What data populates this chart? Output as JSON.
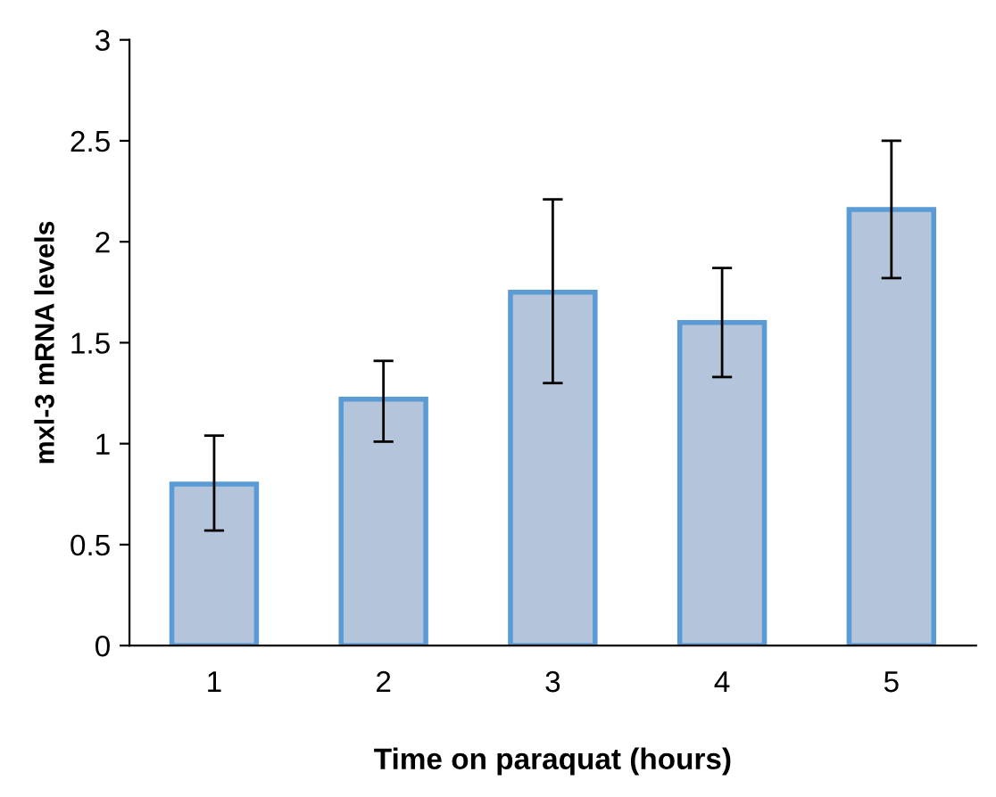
{
  "chart_data": {
    "type": "bar",
    "xlabel": "Time on paraquat (hours)",
    "ylabel": "mxl-3 mRNA levels",
    "categories": [
      "1",
      "2",
      "3",
      "4",
      "5"
    ],
    "values": [
      0.8,
      1.22,
      1.75,
      1.6,
      2.16
    ],
    "errors": [
      [
        0.57,
        1.04
      ],
      [
        1.01,
        1.41
      ],
      [
        1.3,
        2.21
      ],
      [
        1.33,
        1.87
      ],
      [
        1.82,
        2.5
      ]
    ],
    "color": "#b4c4da",
    "ylim": [
      0,
      3
    ],
    "yticks": [
      0,
      0.5,
      1,
      1.5,
      2,
      2.5,
      3
    ],
    "grid": false
  }
}
